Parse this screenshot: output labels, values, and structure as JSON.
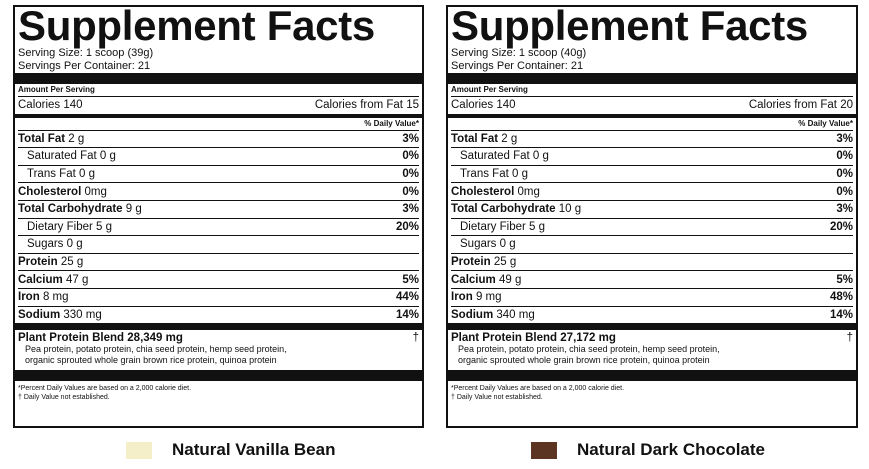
{
  "panels": [
    {
      "title": "Supplement Facts",
      "serving_size": "Serving Size: 1 scoop (39g)",
      "servings_per_container": "Servings Per Container: 21",
      "amount_per_serving": "Amount Per Serving",
      "calories": "Calories 140",
      "calories_from_fat": "Calories from Fat 15",
      "daily_value_header": "% Daily Value*",
      "nutrients": [
        {
          "name": "Total Fat",
          "amount": "2 g",
          "dv": "3%",
          "sub": [
            {
              "name": "Saturated Fat",
              "amount": "0 g",
              "dv": "0%"
            },
            {
              "name": "Trans Fat",
              "amount": "0 g",
              "dv": "0%"
            }
          ]
        },
        {
          "name": "Cholesterol",
          "amount": "0mg",
          "dv": "0%"
        },
        {
          "name": "Total Carbohydrate",
          "amount": "9 g",
          "dv": "3%",
          "sub": [
            {
              "name": "Dietary Fiber",
              "amount": "5 g",
              "dv": "20%"
            },
            {
              "name": "Sugars",
              "amount": "0 g"
            }
          ]
        },
        {
          "name": "Protein",
          "amount": "25 g"
        },
        {
          "name": "Calcium",
          "amount": "47 g",
          "dv": "5%"
        },
        {
          "name": "Iron",
          "amount": "8 mg",
          "dv": "44%"
        },
        {
          "name": "Sodium",
          "amount": "330 mg",
          "dv": "14%"
        }
      ],
      "blend": {
        "name": "Plant Protein Blend",
        "amount": "28,349 mg",
        "dv": "†",
        "ingredients": [
          "Pea protein, potato protein, chia seed protein, hemp seed protein,",
          "organic sprouted whole grain brown rice protein, quinoa protein"
        ]
      },
      "footnotes": [
        "*Percent Daily Values are based on a 2,000 calorie diet.",
        "† Daily Value not established."
      ],
      "flavor": {
        "name": "Natural Vanilla Bean",
        "color": "#f4efc9"
      }
    },
    {
      "title": "Supplement Facts",
      "serving_size": "Serving Size: 1 scoop (40g)",
      "servings_per_container": "Servings Per Container: 21",
      "amount_per_serving": "Amount Per Serving",
      "calories": "Calories 140",
      "calories_from_fat": "Calories from Fat 20",
      "daily_value_header": "% Daily Value*",
      "nutrients": [
        {
          "name": "Total Fat",
          "amount": "2 g",
          "dv": "3%",
          "sub": [
            {
              "name": "Saturated Fat",
              "amount": "0 g",
              "dv": "0%"
            },
            {
              "name": "Trans Fat",
              "amount": "0 g",
              "dv": "0%"
            }
          ]
        },
        {
          "name": "Cholesterol",
          "amount": "0mg",
          "dv": "0%"
        },
        {
          "name": "Total Carbohydrate",
          "amount": "10 g",
          "dv": "3%",
          "sub": [
            {
              "name": "Dietary Fiber",
              "amount": "5 g",
              "dv": "20%"
            },
            {
              "name": "Sugars",
              "amount": "0 g"
            }
          ]
        },
        {
          "name": "Protein",
          "amount": "25 g"
        },
        {
          "name": "Calcium",
          "amount": "49 g",
          "dv": "5%"
        },
        {
          "name": "Iron",
          "amount": "9 mg",
          "dv": "48%"
        },
        {
          "name": "Sodium",
          "amount": "340 mg",
          "dv": "14%"
        }
      ],
      "blend": {
        "name": "Plant Protein Blend",
        "amount": "27,172 mg",
        "dv": "†",
        "ingredients": [
          "Pea protein, potato protein, chia seed protein, hemp seed protein,",
          "organic sprouted whole grain brown rice protein, quinoa protein"
        ]
      },
      "footnotes": [
        "*Percent Daily Values are based on a 2,000 calorie diet.",
        "† Daily Value not established."
      ],
      "flavor": {
        "name": "Natural Dark Chocolate",
        "color": "#5b3521"
      }
    }
  ]
}
